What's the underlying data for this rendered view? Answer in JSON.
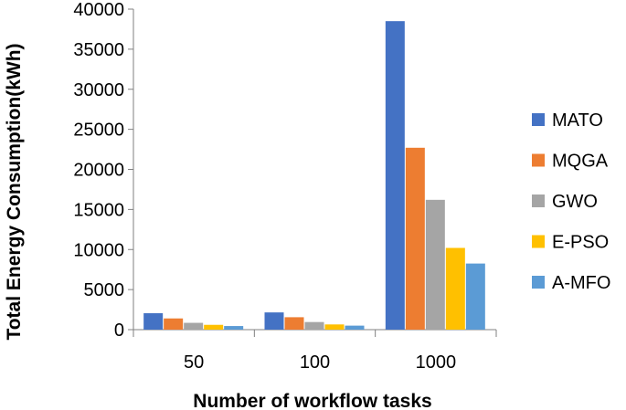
{
  "chart_data": {
    "type": "bar",
    "title": "",
    "xlabel": "Number of workflow tasks",
    "ylabel": "Total Energy Consumption(kWh)",
    "categories": [
      "50",
      "100",
      "1000"
    ],
    "ylim": [
      0,
      40000
    ],
    "yticks": [
      0,
      5000,
      10000,
      15000,
      20000,
      25000,
      30000,
      35000,
      40000
    ],
    "grid": false,
    "legend_position": "right",
    "series": [
      {
        "name": "MATO",
        "color": "#4472C4",
        "values": [
          2050,
          2150,
          38500
        ]
      },
      {
        "name": "MQGA",
        "color": "#ED7D31",
        "values": [
          1400,
          1550,
          22700
        ]
      },
      {
        "name": "GWO",
        "color": "#A5A5A5",
        "values": [
          850,
          950,
          16200
        ]
      },
      {
        "name": "E-PSO",
        "color": "#FFC000",
        "values": [
          600,
          650,
          10200
        ]
      },
      {
        "name": "A-MFO",
        "color": "#5B9BD5",
        "values": [
          450,
          500,
          8250
        ]
      }
    ]
  }
}
